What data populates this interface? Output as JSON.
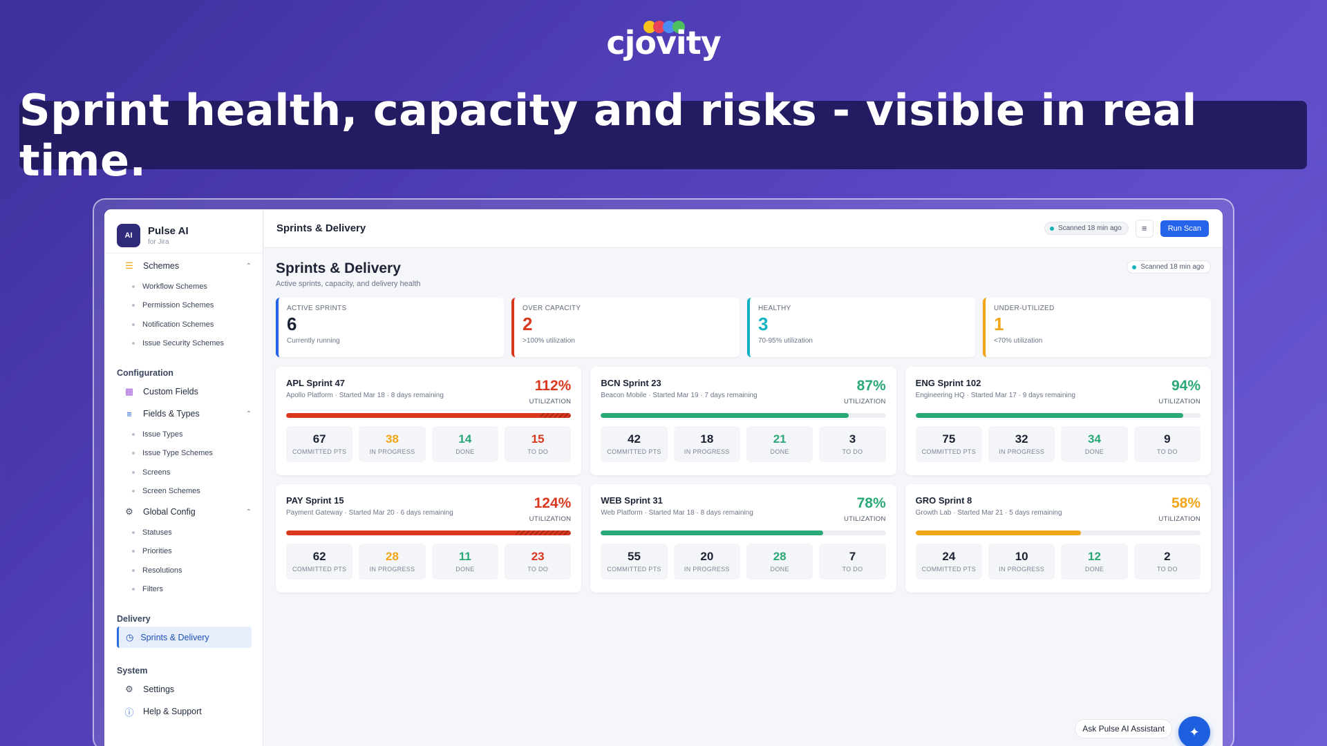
{
  "brand": {
    "name": "cjovity",
    "dot_colors": [
      "#f6c21b",
      "#e8435a",
      "#4c8cf5",
      "#4dbf5e"
    ]
  },
  "banner": {
    "headline": "Sprint health, capacity and risks - visible in real time."
  },
  "app": {
    "name": "Pulse AI",
    "subtitle": "for Jira",
    "logo_text": "AI"
  },
  "sidebar": {
    "schemes": {
      "label": "Schemes",
      "items": [
        "Workflow Schemes",
        "Permission Schemes",
        "Notification Schemes",
        "Issue Security Schemes"
      ]
    },
    "configuration": {
      "title": "Configuration",
      "custom_fields": "Custom Fields",
      "fields_types": {
        "label": "Fields & Types",
        "items": [
          "Issue Types",
          "Issue Type Schemes",
          "Screens",
          "Screen Schemes"
        ]
      },
      "global_config": {
        "label": "Global Config",
        "items": [
          "Statuses",
          "Priorities",
          "Resolutions",
          "Filters"
        ]
      }
    },
    "delivery": {
      "title": "Delivery",
      "active_item": "Sprints & Delivery"
    },
    "system": {
      "title": "System",
      "settings": "Settings",
      "help": "Help & Support"
    }
  },
  "topbar": {
    "title": "Sprints & Delivery",
    "scan_status": "Scanned 18 min ago",
    "run_scan": "Run Scan"
  },
  "page": {
    "title": "Sprints & Delivery",
    "subtitle": "Active sprints, capacity, and delivery health",
    "scan_status": "Scanned 18 min ago"
  },
  "stats": [
    {
      "label": "ACTIVE SPRINTS",
      "value": "6",
      "desc": "Currently running",
      "color": "#2563eb"
    },
    {
      "label": "OVER CAPACITY",
      "value": "2",
      "desc": ">100% utilization",
      "color": "#d9381e"
    },
    {
      "label": "HEALTHY",
      "value": "3",
      "desc": "70-95% utilization",
      "color": "#14b1c4"
    },
    {
      "label": "UNDER-UTILIZED",
      "value": "1",
      "desc": "<70% utilization",
      "color": "#f2a516"
    }
  ],
  "sprint_labels": {
    "utilization": "UTILIZATION",
    "committed": "COMMITTED PTS",
    "in_progress": "IN PROGRESS",
    "done": "DONE",
    "todo": "TO DO"
  },
  "sprints": [
    {
      "name": "APL Sprint 47",
      "meta": "Apollo Platform · Started Mar 18 · 8 days remaining",
      "pct": "112%",
      "utilization": 112,
      "color": "#d9381e",
      "committed": "67",
      "in_progress": "38",
      "done": "14",
      "todo": "15"
    },
    {
      "name": "BCN Sprint 23",
      "meta": "Beacon Mobile · Started Mar 19 · 7 days remaining",
      "pct": "87%",
      "utilization": 87,
      "color": "#2aa876",
      "committed": "42",
      "in_progress": "18",
      "done": "21",
      "todo": "3"
    },
    {
      "name": "ENG Sprint 102",
      "meta": "Engineering HQ · Started Mar 17 · 9 days remaining",
      "pct": "94%",
      "utilization": 94,
      "color": "#2aa876",
      "committed": "75",
      "in_progress": "32",
      "done": "34",
      "todo": "9"
    },
    {
      "name": "PAY Sprint 15",
      "meta": "Payment Gateway · Started Mar 20 · 6 days remaining",
      "pct": "124%",
      "utilization": 124,
      "color": "#d9381e",
      "committed": "62",
      "in_progress": "28",
      "done": "11",
      "todo": "23"
    },
    {
      "name": "WEB Sprint 31",
      "meta": "Web Platform · Started Mar 18 · 8 days remaining",
      "pct": "78%",
      "utilization": 78,
      "color": "#2aa876",
      "committed": "55",
      "in_progress": "20",
      "done": "28",
      "todo": "7"
    },
    {
      "name": "GRO Sprint 8",
      "meta": "Growth Lab · Started Mar 21 · 5 days remaining",
      "pct": "58%",
      "utilization": 58,
      "color": "#f2a516",
      "committed": "24",
      "in_progress": "10",
      "done": "12",
      "todo": "2"
    }
  ],
  "assistant": {
    "label": "Ask Pulse AI Assistant",
    "fab_icon": "sparkle-icon"
  },
  "colors": {
    "in_progress": "#f2a516",
    "done": "#2aa876",
    "over": "#d9381e",
    "accent": "#2563eb"
  }
}
